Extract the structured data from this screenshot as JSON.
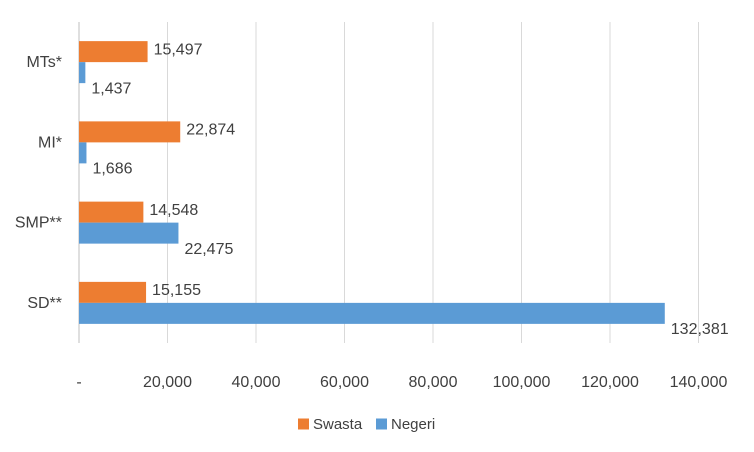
{
  "chart_data": {
    "type": "bar",
    "orientation": "horizontal",
    "categories": [
      "MTs*",
      "MI*",
      "SMP**",
      "SD**"
    ],
    "series": [
      {
        "name": "Swasta",
        "color": "#ED7D31",
        "values": [
          15497,
          22874,
          14548,
          15155
        ],
        "labels": [
          "15,497",
          "22,874",
          "14,548",
          "15,155"
        ]
      },
      {
        "name": "Negeri",
        "color": "#5B9BD5",
        "values": [
          1437,
          1686,
          22475,
          132381
        ],
        "labels": [
          "1,437",
          "1,686",
          "22,475",
          "132,381"
        ]
      }
    ],
    "xlim": [
      0,
      140000
    ],
    "x_ticks": [
      0,
      20000,
      40000,
      60000,
      80000,
      100000,
      120000,
      140000
    ],
    "x_tick_labels": [
      "-",
      "20,000",
      "40,000",
      "60,000",
      "80,000",
      "100,000",
      "120,000",
      "140,000"
    ],
    "grid": true,
    "legend_position": "bottom",
    "title": "",
    "xlabel": "",
    "ylabel": ""
  }
}
